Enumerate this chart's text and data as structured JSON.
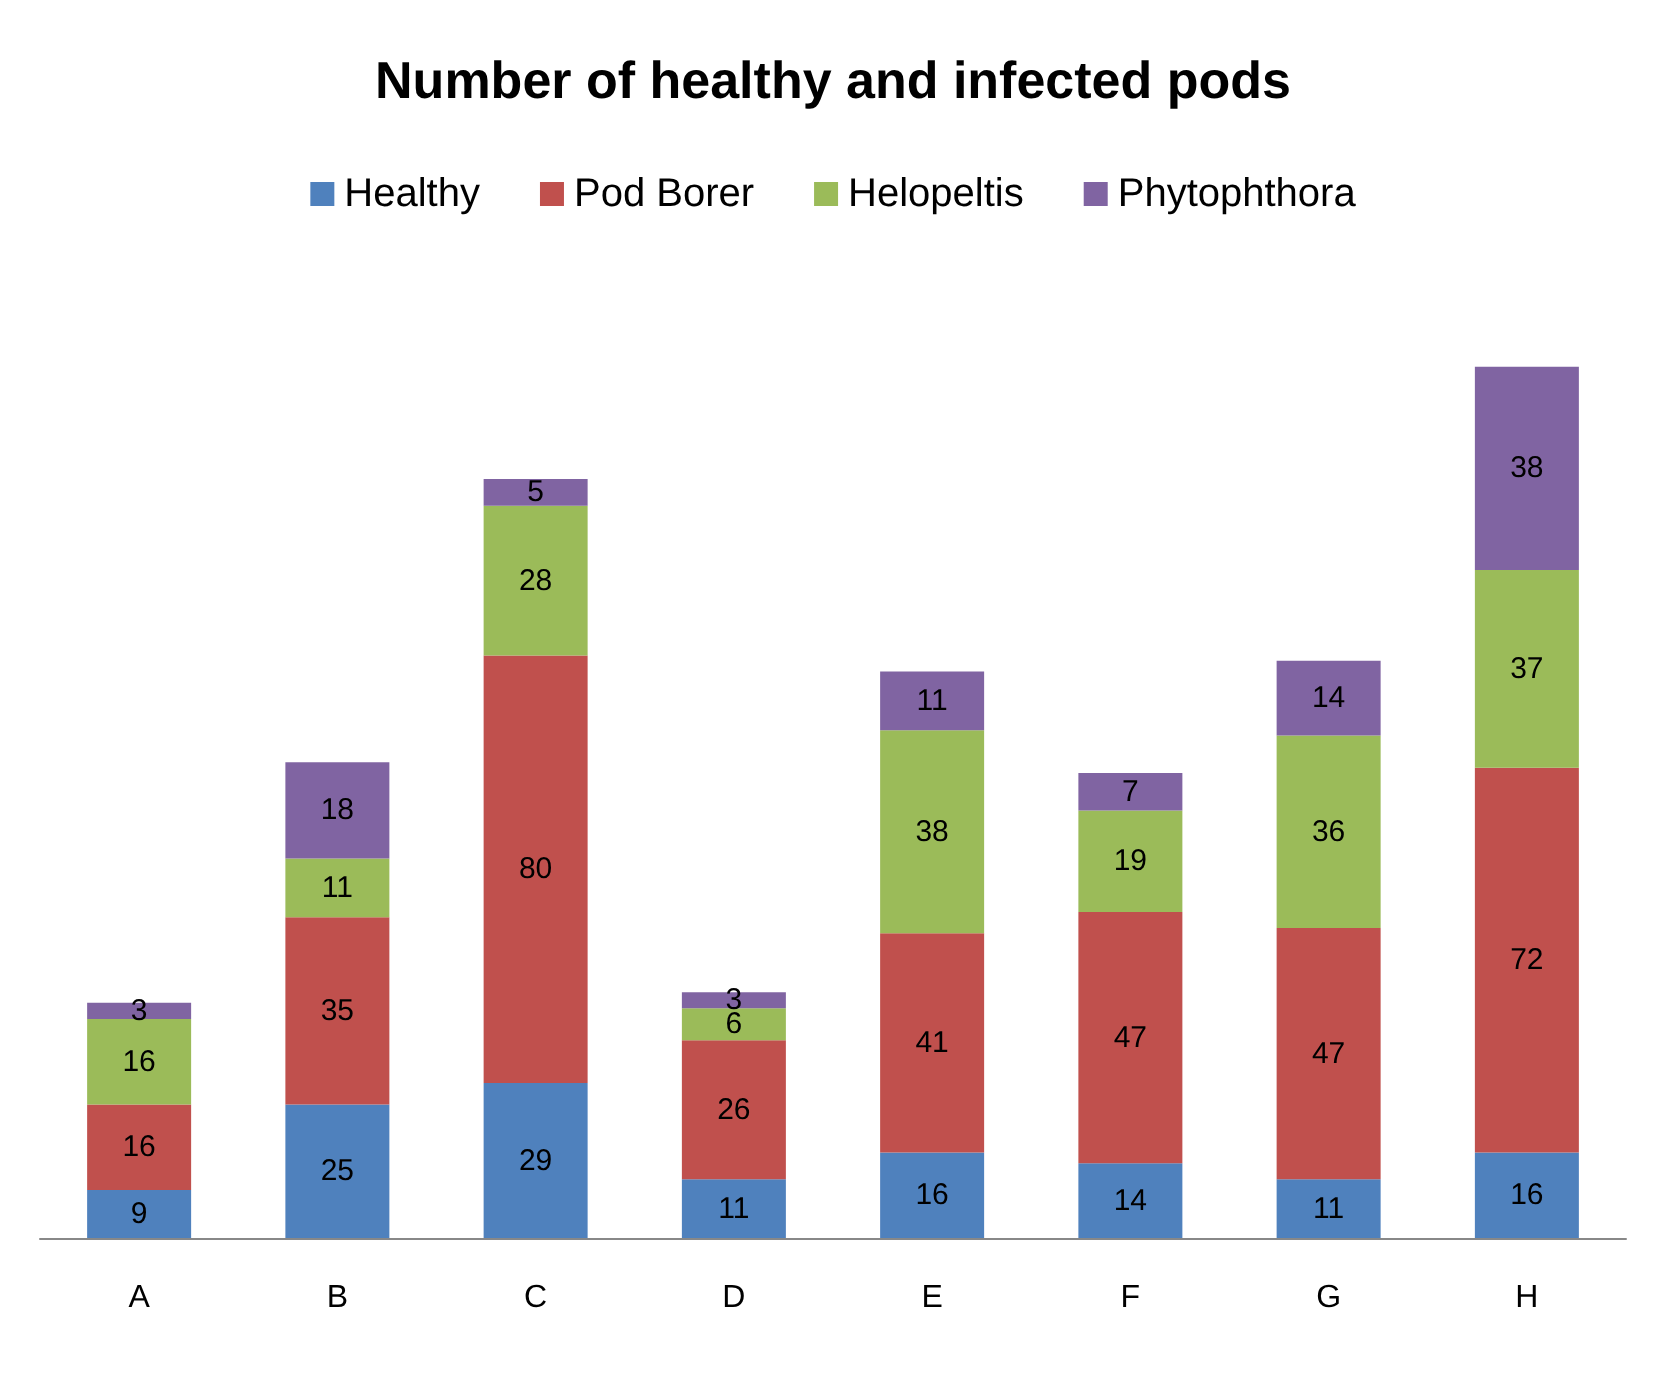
{
  "chart_data": {
    "type": "bar",
    "title": "Number of healthy and infected pods",
    "categories": [
      "A",
      "B",
      "C",
      "D",
      "E",
      "F",
      "G",
      "H"
    ],
    "stacked": true,
    "data_labels": true,
    "legend": "top",
    "series": [
      {
        "name": "Healthy",
        "color": "#4f81bd",
        "values": [
          9,
          25,
          29,
          11,
          16,
          14,
          11,
          16
        ]
      },
      {
        "name": "Pod Borer",
        "color": "#c0504d",
        "values": [
          16,
          35,
          80,
          26,
          41,
          47,
          47,
          72
        ]
      },
      {
        "name": "Helopeltis",
        "color": "#9bbb59",
        "values": [
          16,
          11,
          28,
          6,
          38,
          19,
          36,
          37
        ]
      },
      {
        "name": "Phytophthora",
        "color": "#8064a2",
        "values": [
          3,
          18,
          5,
          3,
          11,
          7,
          14,
          38
        ]
      }
    ]
  }
}
